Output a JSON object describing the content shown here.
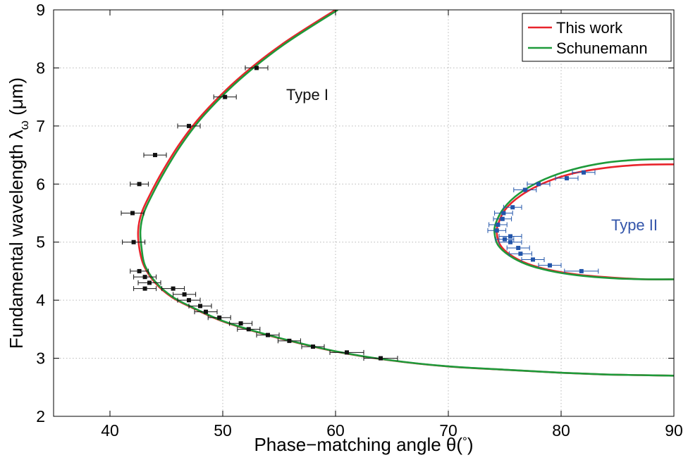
{
  "chart_data": {
    "type": "scatter",
    "xlabel_parts": [
      "Phase−matching angle θ(",
      "°",
      ")"
    ],
    "ylabel_parts": [
      "Fundamental wavelength  λ",
      "ω",
      " (μm)"
    ],
    "xlim": [
      35,
      90
    ],
    "ylim": [
      2,
      9
    ],
    "xticks": [
      40,
      50,
      60,
      70,
      80,
      90
    ],
    "yticks": [
      2,
      3,
      4,
      5,
      6,
      7,
      8,
      9
    ],
    "grid": true,
    "legend_position": "top-right",
    "legend": [
      {
        "label": "This work",
        "color": "#e8242c"
      },
      {
        "label": "Schunemann",
        "color": "#1e9a3a"
      }
    ],
    "annotations": [
      {
        "text": "Type I",
        "x": 57.5,
        "y": 7.45,
        "color": "#111111"
      },
      {
        "text": "Type II",
        "x": 86.5,
        "y": 5.2,
        "color": "#3355aa"
      }
    ],
    "series": [
      {
        "name": "This work",
        "kind": "line",
        "color": "#e8242c",
        "x": [
          60.0,
          55.2,
          51.3,
          48.2,
          46.2,
          44.6,
          43.5,
          42.8,
          42.5,
          42.6,
          43.0,
          44.0,
          45.5,
          47.5,
          49.8,
          52.5,
          55.9,
          59.9,
          64.6,
          69.9,
          75.2,
          80.0,
          84.0,
          87.0,
          90.0
        ],
        "y": [
          9.0,
          8.4,
          7.8,
          7.2,
          6.7,
          6.2,
          5.8,
          5.5,
          5.2,
          4.9,
          4.6,
          4.3,
          4.05,
          3.85,
          3.65,
          3.48,
          3.3,
          3.12,
          2.97,
          2.86,
          2.8,
          2.75,
          2.72,
          2.71,
          2.7
        ]
      },
      {
        "name": "Schunemann",
        "kind": "line",
        "color": "#1e9a3a",
        "x": [
          60.2,
          55.4,
          51.5,
          48.4,
          46.4,
          44.8,
          43.7,
          43.0,
          42.7,
          42.8,
          43.1,
          44.1,
          45.6,
          47.6,
          49.9,
          52.6,
          56.0,
          60.0,
          64.7,
          70.0,
          75.3,
          80.1,
          84.1,
          87.1,
          90.0
        ],
        "y": [
          9.0,
          8.4,
          7.8,
          7.2,
          6.7,
          6.2,
          5.8,
          5.5,
          5.2,
          4.9,
          4.6,
          4.3,
          4.05,
          3.85,
          3.65,
          3.48,
          3.3,
          3.12,
          2.97,
          2.86,
          2.8,
          2.75,
          2.72,
          2.71,
          2.7
        ]
      },
      {
        "name": "This work",
        "kind": "line",
        "color": "#e8242c",
        "x": [
          90.0,
          87.0,
          84.0,
          81.0,
          78.5,
          76.4,
          75.0,
          74.4,
          74.3,
          74.6,
          75.5,
          77.0,
          79.0,
          81.5,
          84.5,
          87.5,
          90.0
        ],
        "y": [
          6.34,
          6.33,
          6.28,
          6.18,
          6.02,
          5.8,
          5.55,
          5.3,
          5.15,
          4.95,
          4.78,
          4.63,
          4.52,
          4.44,
          4.39,
          4.36,
          4.36
        ]
      },
      {
        "name": "Schunemann",
        "kind": "line",
        "color": "#1e9a3a",
        "x": [
          90.0,
          87.0,
          84.0,
          81.0,
          78.5,
          76.3,
          74.9,
          74.2,
          74.1,
          74.4,
          75.4,
          76.9,
          78.9,
          81.4,
          84.4,
          87.4,
          90.0
        ],
        "y": [
          6.43,
          6.42,
          6.37,
          6.25,
          6.08,
          5.84,
          5.58,
          5.32,
          5.15,
          4.95,
          4.77,
          4.62,
          4.51,
          4.43,
          4.38,
          4.36,
          4.36
        ]
      },
      {
        "name": "",
        "kind": "points",
        "color": "#111111",
        "points": [
          [
            53.0,
            8.0,
            1.0
          ],
          [
            50.2,
            7.5,
            1.0
          ],
          [
            47.0,
            7.0,
            1.0
          ],
          [
            44.0,
            6.5,
            1.0
          ],
          [
            42.6,
            6.0,
            0.8
          ],
          [
            42.0,
            5.5,
            1.0
          ],
          [
            42.1,
            5.0,
            1.0
          ],
          [
            42.6,
            4.5,
            0.8
          ],
          [
            43.1,
            4.4,
            1.0
          ],
          [
            43.5,
            4.3,
            1.0
          ],
          [
            43.1,
            4.2,
            1.0
          ],
          [
            45.6,
            4.2,
            1.0
          ],
          [
            46.6,
            4.1,
            1.0
          ],
          [
            47.0,
            4.0,
            1.0
          ],
          [
            48.0,
            3.9,
            1.0
          ],
          [
            48.5,
            3.8,
            1.0
          ],
          [
            49.7,
            3.7,
            1.0
          ],
          [
            51.6,
            3.6,
            1.0
          ],
          [
            52.3,
            3.5,
            1.0
          ],
          [
            54.0,
            3.4,
            1.0
          ],
          [
            55.9,
            3.3,
            1.0
          ],
          [
            58.0,
            3.2,
            1.0
          ],
          [
            61.0,
            3.1,
            1.5
          ],
          [
            64.0,
            3.0,
            1.5
          ]
        ]
      },
      {
        "name": "",
        "kind": "points",
        "color": "#2255aa",
        "points": [
          [
            82.0,
            6.2,
            1.0
          ],
          [
            80.5,
            6.1,
            1.0
          ],
          [
            78.0,
            6.0,
            1.0
          ],
          [
            76.8,
            5.9,
            1.0
          ],
          [
            75.7,
            5.6,
            0.8
          ],
          [
            74.9,
            5.5,
            0.8
          ],
          [
            74.8,
            5.4,
            0.8
          ],
          [
            74.4,
            5.3,
            0.8
          ],
          [
            74.3,
            5.2,
            0.8
          ],
          [
            75.5,
            5.1,
            1.0
          ],
          [
            75.0,
            5.05,
            0.8
          ],
          [
            75.5,
            5.0,
            1.0
          ],
          [
            76.2,
            4.9,
            1.0
          ],
          [
            76.4,
            4.8,
            1.0
          ],
          [
            77.5,
            4.7,
            1.0
          ],
          [
            79.0,
            4.6,
            1.0
          ],
          [
            81.8,
            4.5,
            1.5
          ]
        ]
      }
    ]
  }
}
